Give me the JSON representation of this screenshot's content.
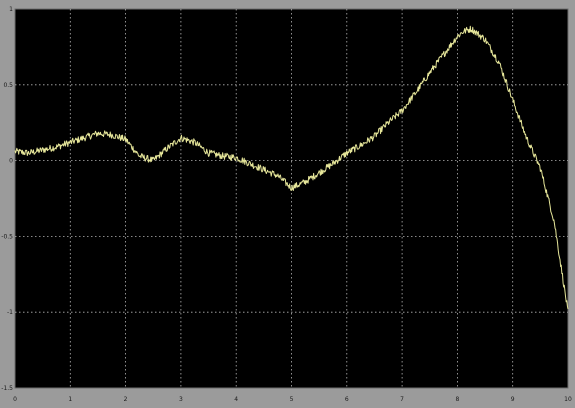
{
  "chart_data": {
    "type": "line",
    "title": "",
    "xlabel": "",
    "ylabel": "",
    "xlim": [
      0,
      10
    ],
    "ylim": [
      -1.5,
      1
    ],
    "grid": true,
    "x_ticks": [
      "0",
      "1",
      "2",
      "3",
      "4",
      "5",
      "6",
      "7",
      "8",
      "9",
      "10"
    ],
    "y_ticks": [
      "1",
      "0.5",
      "0",
      "-0.5",
      "-1",
      "-1.5"
    ],
    "y_tick_values": [
      1,
      0.5,
      0,
      -0.5,
      -1,
      -1.5
    ],
    "colors": {
      "background": "#000000",
      "frame": "#9b9b9b",
      "grid": "#b4b4b4",
      "trace": "#e6e69a"
    },
    "series": [
      {
        "name": "",
        "x": [
          0,
          0.25,
          0.5,
          0.75,
          1,
          1.25,
          1.5,
          1.75,
          2,
          2.25,
          2.5,
          2.75,
          3,
          3.25,
          3.5,
          3.75,
          4,
          4.25,
          4.5,
          4.75,
          5,
          5.25,
          5.5,
          5.75,
          6,
          6.25,
          6.5,
          6.75,
          7,
          7.25,
          7.5,
          7.75,
          8,
          8.1,
          8.25,
          8.5,
          8.75,
          9,
          9.25,
          9.5,
          9.75,
          10
        ],
        "y": [
          0.06,
          0.05,
          0.07,
          0.09,
          0.12,
          0.15,
          0.18,
          0.17,
          0.14,
          0.03,
          0.0,
          0.08,
          0.15,
          0.12,
          0.05,
          0.03,
          0.02,
          -0.02,
          -0.06,
          -0.1,
          -0.18,
          -0.14,
          -0.08,
          -0.02,
          0.05,
          0.1,
          0.16,
          0.25,
          0.33,
          0.45,
          0.58,
          0.7,
          0.82,
          0.85,
          0.87,
          0.8,
          0.65,
          0.4,
          0.15,
          -0.05,
          -0.4,
          -1.0
        ]
      }
    ]
  }
}
